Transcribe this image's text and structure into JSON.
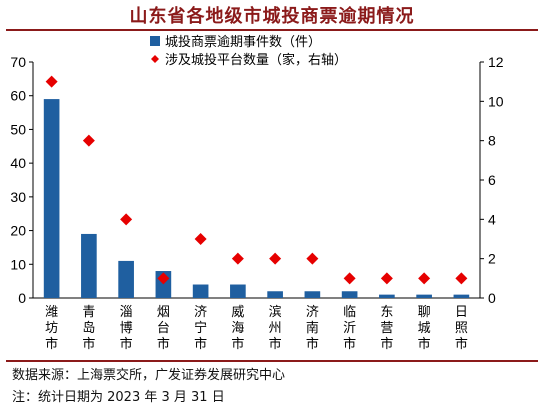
{
  "title": "山东省各地级市城投商票逾期情况",
  "notes": {
    "source": "数据来源：上海票交所，广发证券发展研究中心",
    "note": "注：统计日期为 2023 年 3 月 31 日"
  },
  "colors": {
    "bar": "#1f5fa0",
    "marker": "#e60000",
    "title": "#8b1a1a"
  },
  "chart_data": {
    "type": "bar",
    "categories": [
      "潍坊市",
      "青岛市",
      "淄博市",
      "烟台市",
      "济宁市",
      "威海市",
      "滨州市",
      "济南市",
      "临沂市",
      "东营市",
      "聊城市",
      "日照市"
    ],
    "series": [
      {
        "name": "城投商票逾期事件数（件）",
        "type": "bar",
        "axis": "left",
        "values": [
          59,
          19,
          11,
          8,
          4,
          4,
          2,
          2,
          2,
          1,
          1,
          1
        ]
      },
      {
        "name": "涉及城投平台数量（家，右轴）",
        "type": "scatter",
        "axis": "right",
        "values": [
          11,
          8,
          4,
          1,
          3,
          2,
          2,
          2,
          1,
          1,
          1,
          1
        ]
      }
    ],
    "y_left": {
      "min": 0,
      "max": 70,
      "ticks": [
        0,
        10,
        20,
        30,
        40,
        50,
        60,
        70
      ]
    },
    "y_right": {
      "min": 0,
      "max": 12,
      "ticks": [
        0,
        2,
        4,
        6,
        8,
        10,
        12
      ]
    },
    "legend_position": "top-center",
    "grid": false
  }
}
